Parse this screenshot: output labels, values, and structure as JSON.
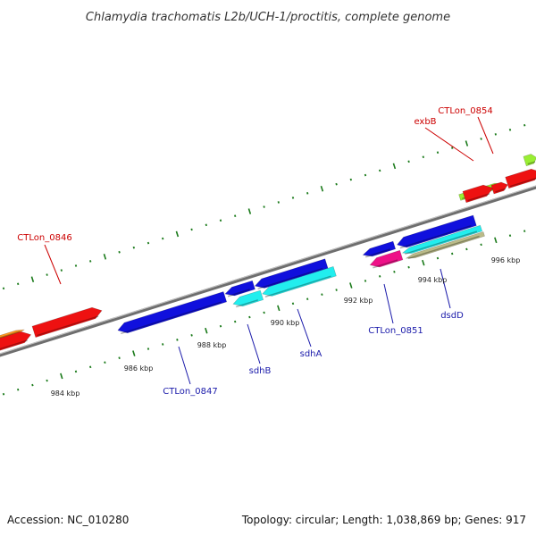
{
  "title": "Chlamydia trachomatis L2b/UCH-1/proctitis, complete genome",
  "footer": {
    "accession": "Accession: NC_010280",
    "summary": "Topology: circular; Length: 1,038,869 bp; Genes: 917"
  },
  "scale_labels": [
    "984 kbp",
    "986 kbp",
    "988 kbp",
    "990 kbp",
    "992 kbp",
    "994 kbp",
    "996 kbp"
  ],
  "gene_labels": [
    {
      "text": "CTLon_0846",
      "strand": "forward"
    },
    {
      "text": "exbB",
      "strand": "forward"
    },
    {
      "text": "CTLon_0854",
      "strand": "forward"
    },
    {
      "text": "CTLon_0847",
      "strand": "reverse"
    },
    {
      "text": "sdhB",
      "strand": "reverse"
    },
    {
      "text": "sdhA",
      "strand": "reverse"
    },
    {
      "text": "CTLon_0851",
      "strand": "reverse"
    },
    {
      "text": "dsdD",
      "strand": "reverse"
    }
  ],
  "colors": {
    "forward_label": "#cc0000",
    "reverse_label": "#1a1aaa",
    "backbone": "#8c8c8c",
    "tick": "#1a7a1a",
    "red_gene": "#ee1111",
    "blue_gene": "#1010dd",
    "cyan_gene": "#22eeee",
    "lime_gene": "#99ee33",
    "magenta_gene": "#ee1188",
    "khaki_gene": "#bbbb88",
    "orange_gene": "#ff9922",
    "green_gene": "#33cc33"
  }
}
